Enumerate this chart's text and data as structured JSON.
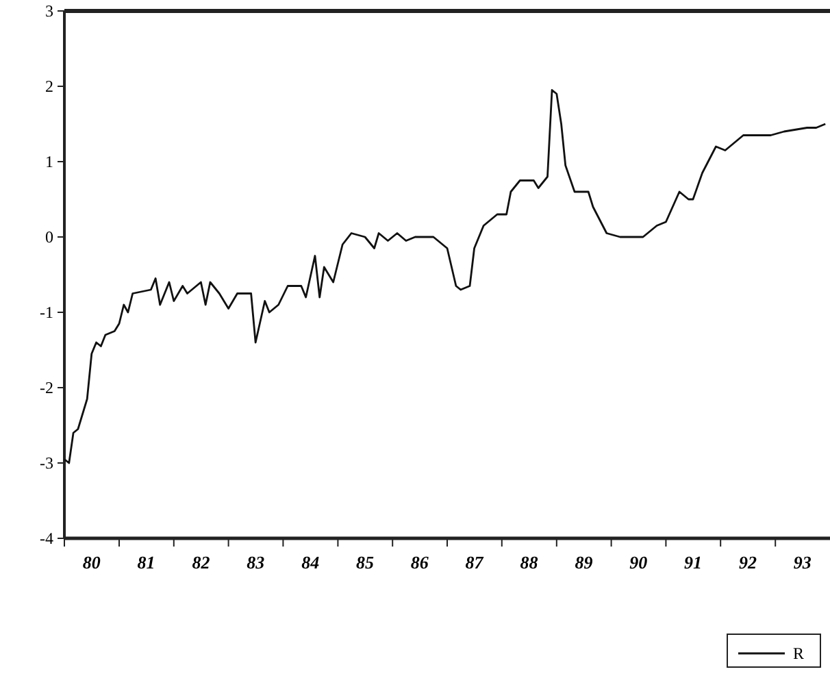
{
  "chart_data": {
    "type": "line",
    "xlim": [
      "1980-01",
      "1994-01"
    ],
    "ylim": [
      -4,
      3
    ],
    "yticks": [
      -4,
      -3,
      -2,
      -1,
      0,
      1,
      2,
      3
    ],
    "xticks": [
      {
        "value": "1980-01",
        "label": null
      },
      {
        "value": "1980-07",
        "label": "80"
      },
      {
        "value": "1981-01",
        "label": null
      },
      {
        "value": "1981-07",
        "label": "81"
      },
      {
        "value": "1982-01",
        "label": null
      },
      {
        "value": "1982-07",
        "label": "82"
      },
      {
        "value": "1983-01",
        "label": null
      },
      {
        "value": "1983-07",
        "label": "83"
      },
      {
        "value": "1984-01",
        "label": null
      },
      {
        "value": "1984-07",
        "label": "84"
      },
      {
        "value": "1985-01",
        "label": null
      },
      {
        "value": "1985-07",
        "label": "85"
      },
      {
        "value": "1986-01",
        "label": null
      },
      {
        "value": "1986-07",
        "label": "86"
      },
      {
        "value": "1987-01",
        "label": null
      },
      {
        "value": "1987-07",
        "label": "87"
      },
      {
        "value": "1988-01",
        "label": null
      },
      {
        "value": "1988-07",
        "label": "88"
      },
      {
        "value": "1989-01",
        "label": null
      },
      {
        "value": "1989-07",
        "label": "89"
      },
      {
        "value": "1990-01",
        "label": null
      },
      {
        "value": "1990-07",
        "label": "90"
      },
      {
        "value": "1991-01",
        "label": null
      },
      {
        "value": "1991-07",
        "label": "91"
      },
      {
        "value": "1992-01",
        "label": null
      },
      {
        "value": "1992-07",
        "label": "92"
      },
      {
        "value": "1993-01",
        "label": null
      },
      {
        "value": "1993-07",
        "label": "93"
      }
    ],
    "grid": false,
    "legend": "bottom right",
    "marker": "none",
    "line_style": "solid",
    "series": [
      {
        "name": "R",
        "color": "#111111",
        "x": [
          "1980-01",
          "1980-02",
          "1980-03",
          "1980-04",
          "1980-06",
          "1980-07",
          "1980-08",
          "1980-09",
          "1980-10",
          "1980-12",
          "1981-01",
          "1981-02",
          "1981-03",
          "1981-04",
          "1981-08",
          "1981-09",
          "1981-10",
          "1981-12",
          "1982-01",
          "1982-03",
          "1982-04",
          "1982-07",
          "1982-08",
          "1982-09",
          "1982-11",
          "1983-01",
          "1983-03",
          "1983-06",
          "1983-07",
          "1983-09",
          "1983-10",
          "1983-12",
          "1984-02",
          "1984-05",
          "1984-06",
          "1984-08",
          "1984-09",
          "1984-10",
          "1984-12",
          "1985-02",
          "1985-04",
          "1985-07",
          "1985-09",
          "1985-10",
          "1985-12",
          "1986-02",
          "1986-04",
          "1986-06",
          "1986-10",
          "1987-01",
          "1987-03",
          "1987-04",
          "1987-06",
          "1987-07",
          "1987-09",
          "1987-12",
          "1988-02",
          "1988-03",
          "1988-05",
          "1988-08",
          "1988-09",
          "1988-11",
          "1988-12",
          "1989-01",
          "1989-02",
          "1989-03",
          "1989-05",
          "1989-08",
          "1989-09",
          "1989-12",
          "1990-03",
          "1990-08",
          "1990-11",
          "1991-01",
          "1991-04",
          "1991-06",
          "1991-07",
          "1991-09",
          "1991-12",
          "1992-02",
          "1992-06",
          "1992-12",
          "1993-03",
          "1993-08",
          "1993-10",
          "1993-12"
        ],
        "values": [
          -2.95,
          -3.0,
          -2.6,
          -2.55,
          -2.15,
          -1.55,
          -1.4,
          -1.45,
          -1.3,
          -1.25,
          -1.15,
          -0.9,
          -1.0,
          -0.75,
          -0.7,
          -0.55,
          -0.9,
          -0.6,
          -0.85,
          -0.65,
          -0.75,
          -0.6,
          -0.9,
          -0.6,
          -0.75,
          -0.95,
          -0.75,
          -0.75,
          -1.4,
          -0.85,
          -1.0,
          -0.9,
          -0.65,
          -0.65,
          -0.8,
          -0.25,
          -0.8,
          -0.4,
          -0.6,
          -0.1,
          0.05,
          0.0,
          -0.15,
          0.05,
          -0.05,
          0.05,
          -0.05,
          0.0,
          0.0,
          -0.15,
          -0.65,
          -0.7,
          -0.65,
          -0.15,
          0.15,
          0.3,
          0.3,
          0.6,
          0.75,
          0.75,
          0.65,
          0.8,
          1.95,
          1.9,
          1.5,
          0.95,
          0.6,
          0.6,
          0.4,
          0.05,
          0.0,
          0.0,
          0.15,
          0.2,
          0.6,
          0.5,
          0.5,
          0.85,
          1.2,
          1.15,
          1.35,
          1.35,
          1.4,
          1.45,
          1.45,
          1.5
        ]
      }
    ]
  }
}
